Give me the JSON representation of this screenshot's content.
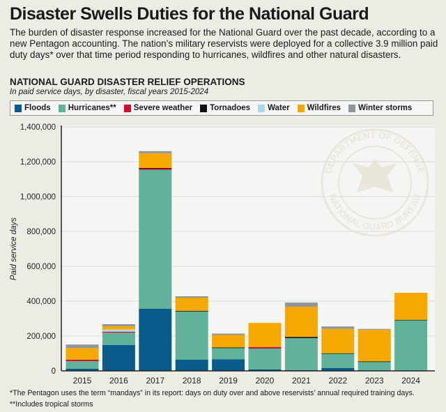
{
  "header": {
    "title": "Disaster Swells Duties for the National Guard",
    "intro": "The burden of disaster response increased for the National Guard over the past decade, according to a new Pentagon accounting. The nation’s military reservists were deployed for a collective 3.9 million paid duty days* over that time period responding to hurricanes, wildfires and other natural disasters."
  },
  "footnotes": [
    "*The Pentagon uses the term “mandays” in its report: days on duty over and above reservists’ annual required training days.",
    "**Includes tropical storms"
  ],
  "watermark": {
    "top": "DEPARTMENT OF DEFENSE",
    "bottom": "NATIONAL GUARD BUREAU"
  },
  "chart_data": {
    "type": "bar",
    "stacked": true,
    "title": "NATIONAL GUARD DISASTER RELIEF OPERATIONS",
    "subtitle": "In paid service days, by disaster, fiscal years 2015-2024",
    "xlabel": "",
    "ylabel": "Paid service days",
    "ylim": [
      0,
      1400000
    ],
    "yticks": [
      "0",
      "200,000",
      "400,000",
      "600,000",
      "800,000",
      "1,000,000",
      "1,200,000",
      "1,400,000"
    ],
    "grid": true,
    "legend": "top",
    "categories": [
      "2015",
      "2016",
      "2017",
      "2018",
      "2019",
      "2020",
      "2021",
      "2022",
      "2023",
      "2024"
    ],
    "series": [
      {
        "name": "Floods",
        "color": "#085c8a",
        "values": [
          13000,
          149000,
          356000,
          64000,
          67000,
          8000,
          5000,
          16000,
          2000,
          2000
        ]
      },
      {
        "name": "Hurricanes**",
        "color": "#60b29a",
        "values": [
          43000,
          70000,
          798000,
          279000,
          65000,
          120000,
          183000,
          84000,
          49000,
          290000
        ]
      },
      {
        "name": "Severe weather",
        "color": "#d2102e",
        "values": [
          8000,
          6000,
          8000,
          0,
          0,
          9000,
          0,
          0,
          0,
          0
        ]
      },
      {
        "name": "Tornadoes",
        "color": "#111111",
        "values": [
          0,
          0,
          2000,
          1000,
          2000,
          0,
          7000,
          1000,
          3000,
          1000
        ]
      },
      {
        "name": "Water",
        "color": "#add8ea",
        "values": [
          0,
          12000,
          0,
          0,
          0,
          0,
          0,
          0,
          0,
          0
        ]
      },
      {
        "name": "Wildfires",
        "color": "#f5a800",
        "values": [
          67000,
          19000,
          85000,
          76000,
          72000,
          138000,
          173000,
          140000,
          183000,
          155000
        ]
      },
      {
        "name": "Winter storms",
        "color": "#8f969c",
        "values": [
          20000,
          12000,
          12000,
          8000,
          8000,
          0,
          24000,
          14000,
          4000,
          0
        ]
      }
    ]
  }
}
